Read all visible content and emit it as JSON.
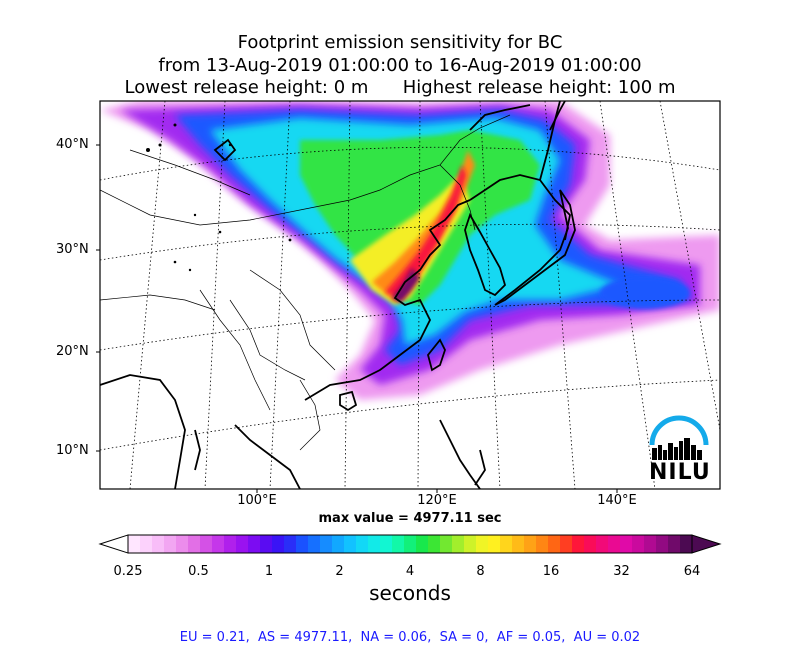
{
  "title": {
    "line1": "Footprint emission sensitivity for BC",
    "line2": "from 13-Aug-2019 01:00:00 to 16-Aug-2019 01:00:00",
    "line3": "Lowest release height: 0 m      Highest release height: 100 m"
  },
  "map": {
    "lat_labels": [
      "40°N",
      "30°N",
      "20°N",
      "10°N"
    ],
    "lon_labels": [
      "100°E",
      "120°E",
      "140°E"
    ],
    "max_value_text": "max value = 4977.11 sec",
    "logo_text": "NILU"
  },
  "colorbar": {
    "ticks": [
      "0.25",
      "0.5",
      "1",
      "2",
      "4",
      "8",
      "16",
      "32",
      "64"
    ],
    "unit": "seconds",
    "colors": [
      "#ffe6ff",
      "#fcd2fc",
      "#f8bdf8",
      "#f2a6f2",
      "#ec8cec",
      "#e26fe6",
      "#d451e6",
      "#c537ea",
      "#b020ec",
      "#9a12f0",
      "#7c0cf2",
      "#5a0cf2",
      "#3a14f6",
      "#2a2ef8",
      "#1a52ff",
      "#1670ff",
      "#168cff",
      "#12a8ff",
      "#12c2ff",
      "#12d8f6",
      "#12eae8",
      "#12f6d2",
      "#12f8a8",
      "#12f07a",
      "#18e84c",
      "#3ce634",
      "#72e830",
      "#a2ee2c",
      "#cef229",
      "#f0f426",
      "#fff020",
      "#ffd51c",
      "#ffbb18",
      "#ffa216",
      "#ff8614",
      "#ff6614",
      "#ff3e22",
      "#ff163a",
      "#fa0c58",
      "#f20a78",
      "#ea0a92",
      "#e00aa8",
      "#ca0a9e",
      "#b00a92",
      "#920a82",
      "#700a6a",
      "#4c0a52"
    ],
    "left_arrow_color": "#ffffff",
    "right_arrow_color": "#4c0a52"
  },
  "footer": "EU = 0.21,  AS = 4977.11,  NA = 0.06,  SA = 0,  AF = 0.05,  AU = 0.02"
}
